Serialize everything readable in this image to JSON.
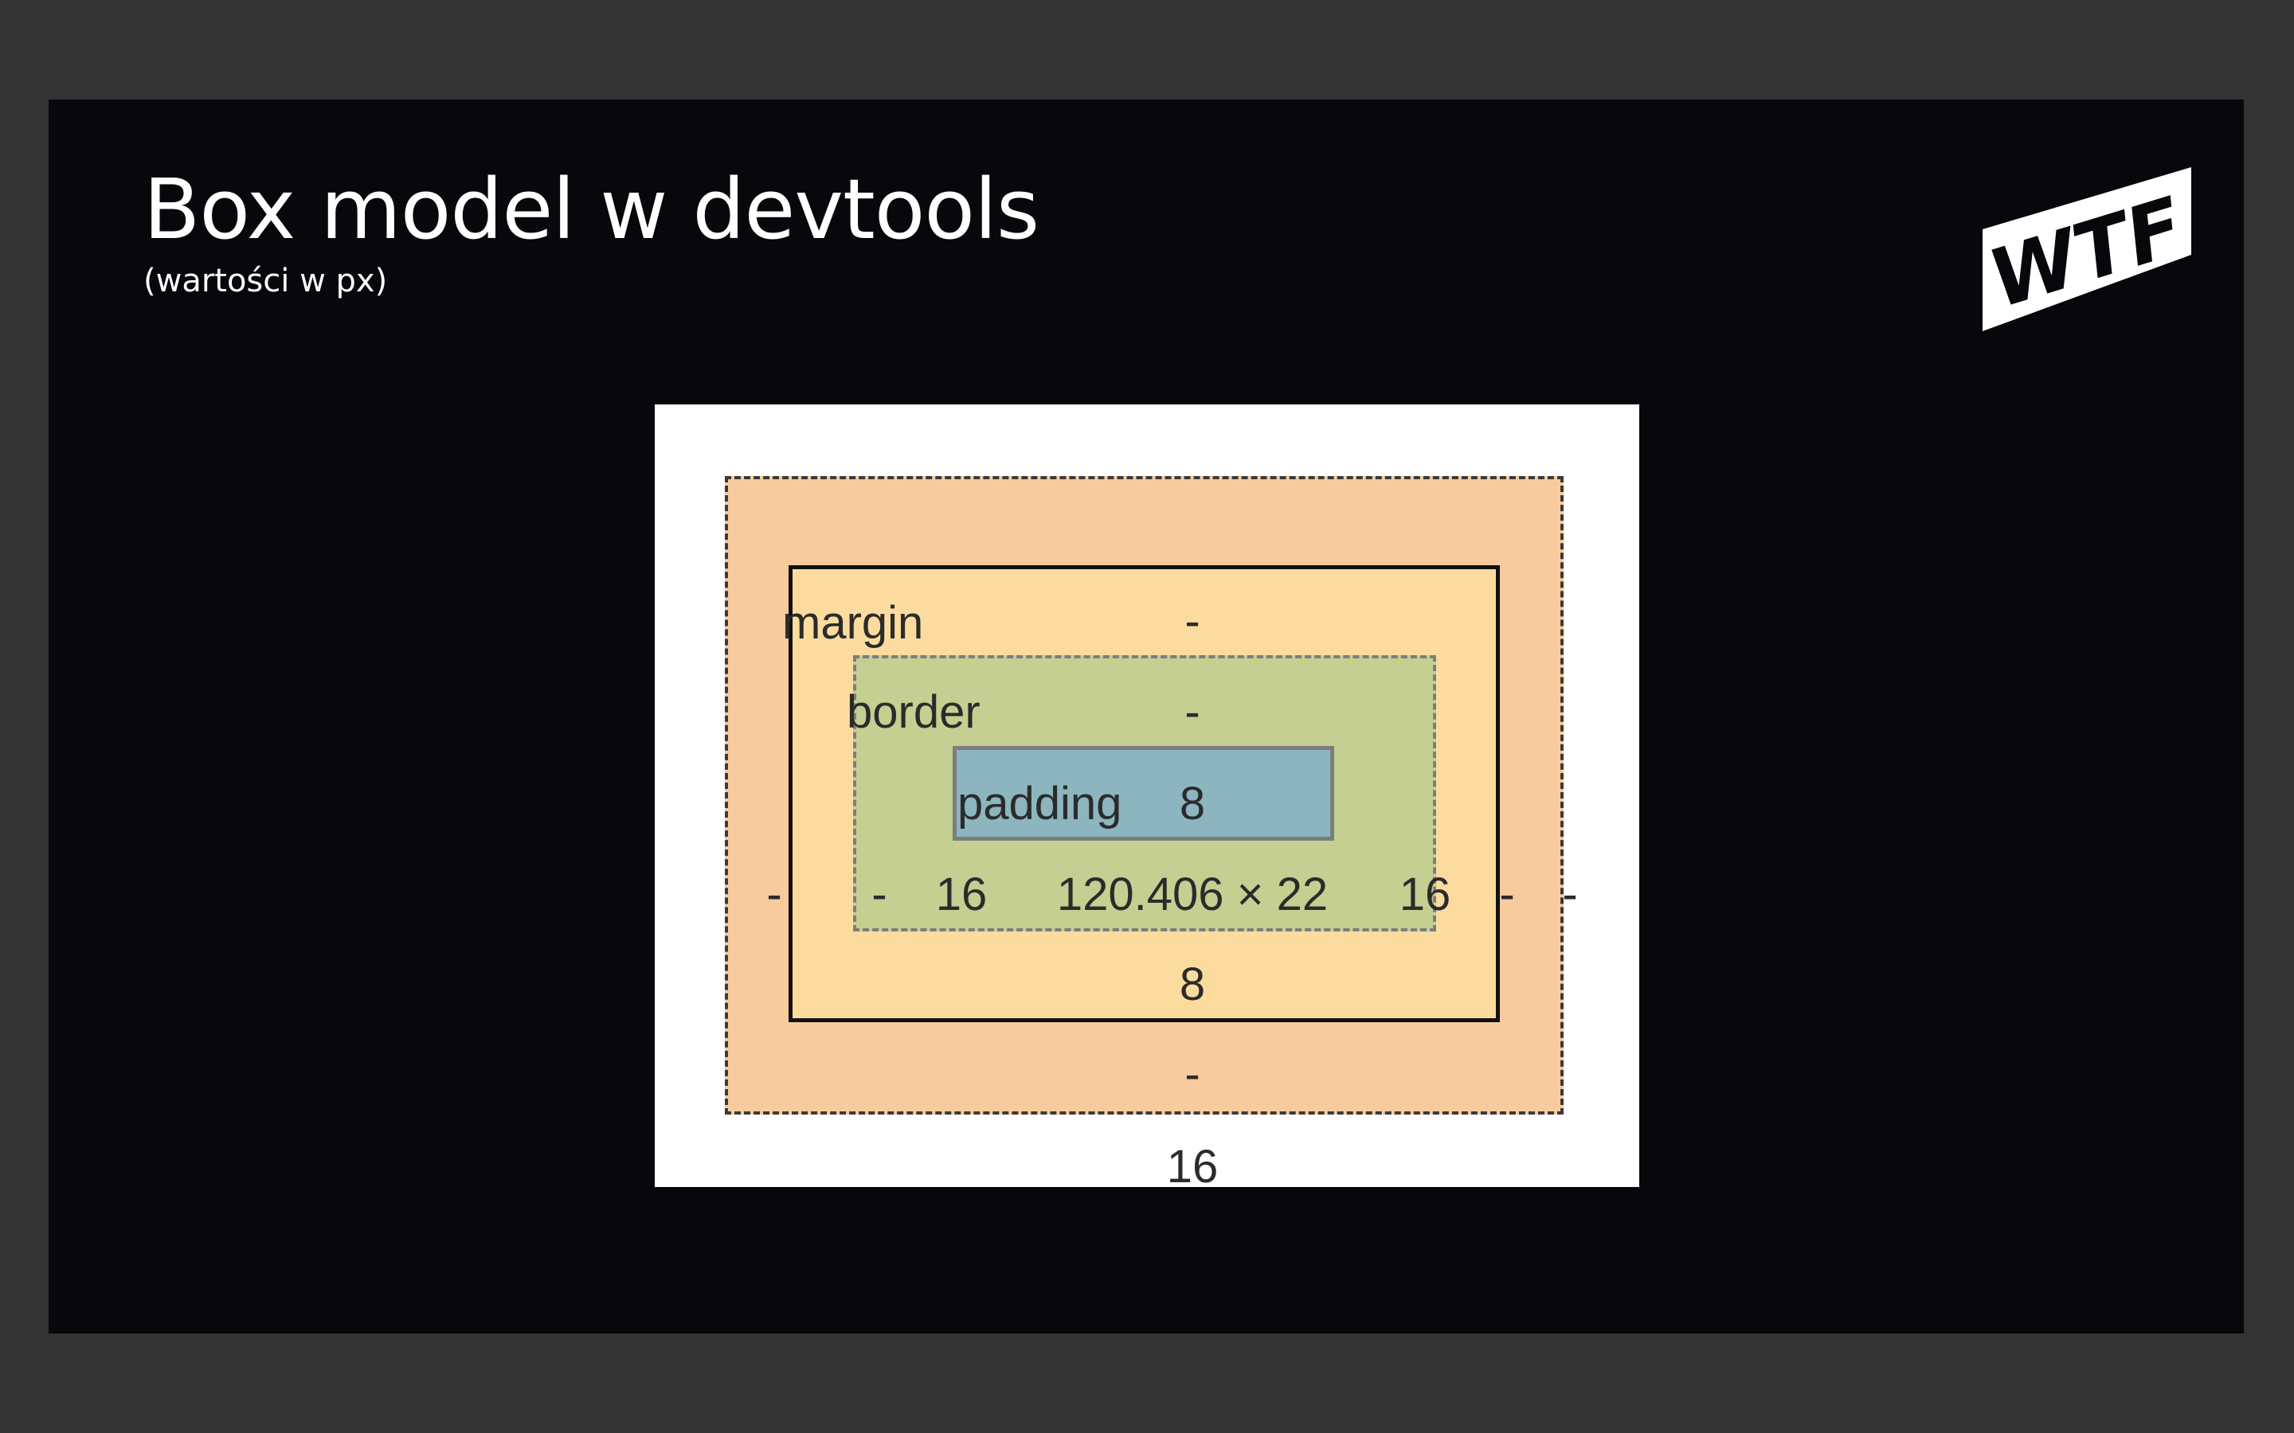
{
  "slide": {
    "title": "Box model w devtools",
    "subtitle": "(wartości w px)",
    "logo_text": "WTF"
  },
  "box_model": {
    "margin": {
      "label": "margin",
      "top": "-",
      "right": "-",
      "bottom": "16",
      "left": "-"
    },
    "border": {
      "label": "border",
      "top": "-",
      "right": "-",
      "bottom": "-",
      "left": "-"
    },
    "padding": {
      "label": "padding",
      "top": "8",
      "right": "16",
      "bottom": "8",
      "left": "16"
    },
    "content": {
      "size": "120.406 × 22"
    }
  },
  "colors": {
    "slide_background": "#08070b",
    "outer_background": "#333333",
    "margin": "#f8cb9e",
    "border": "#fcdc9e",
    "padding": "#c4cf91",
    "content": "#8cb5bf"
  }
}
